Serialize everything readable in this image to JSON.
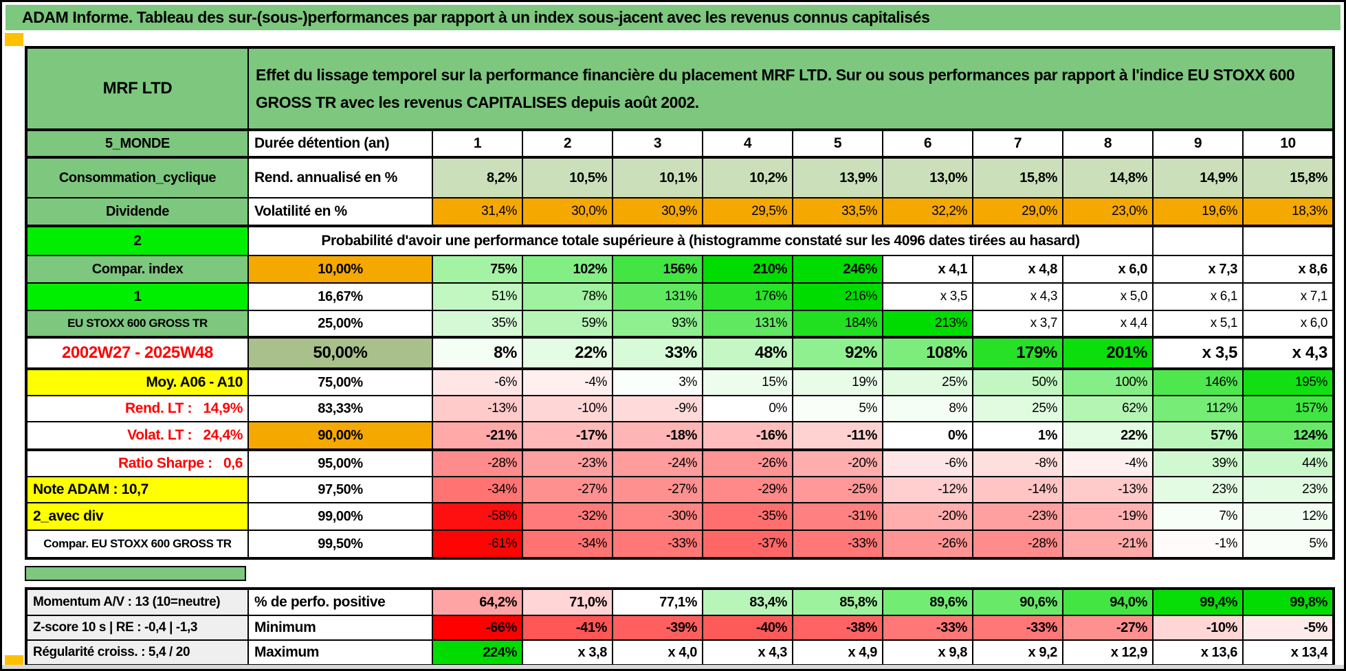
{
  "page": {
    "title": "ADAM Informe. Tableau des sur-(sous-)performances par rapport à un index sous-jacent avec les revenus connus capitalisés"
  },
  "header": {
    "name": "MRF LTD",
    "description": "Effet du lissage temporel sur la performance financière du placement MRF LTD. Sur ou sous performances par rapport à l'indice EU STOXX 600 GROSS TR avec les revenus CAPITALISES depuis août 2002."
  },
  "colors": {
    "band_green": "#7DC77E",
    "bright_green": "#00EF00",
    "orange": "#F5A800",
    "yellow": "#FFFF00",
    "sage": "#A9C08C",
    "rend_row_bg": "#CBE0BA",
    "info_gray": "#EFEFEF",
    "red_text": "#FF0000",
    "scale_green_max": "#00DC00",
    "scale_red_max": "#FF0000",
    "marker_orange": "#FFC000"
  },
  "left_labels": [
    {
      "text": "5_MONDE",
      "bg": "band",
      "fg": "#000000",
      "align": "center",
      "size": 20
    },
    {
      "text": "Consommation_cyclique",
      "bg": "band",
      "fg": "#000000",
      "align": "center",
      "size": 20
    },
    {
      "text": "Dividende",
      "bg": "band",
      "fg": "#000000",
      "align": "center",
      "size": 20
    },
    {
      "text": "2",
      "bg": "bright",
      "fg": "#000000",
      "align": "center",
      "size": 21,
      "marker": true
    },
    {
      "text": "Compar. index",
      "bg": "band",
      "fg": "#000000",
      "align": "center",
      "size": 20
    },
    {
      "text": "1",
      "bg": "bright",
      "fg": "#000000",
      "align": "center",
      "size": 21,
      "marker": true
    },
    {
      "text": "EU STOXX 600 GROSS TR",
      "bg": "band",
      "fg": "#000000",
      "align": "center",
      "size": 17
    },
    {
      "text": "2002W27 - 2025W48",
      "bg": "white",
      "fg": "#FF0000",
      "align": "center",
      "size": 24
    },
    {
      "text": "Moy. A06 - A10",
      "bg": "yellow",
      "fg": "#000000",
      "align": "right",
      "size": 21
    },
    {
      "text": "Rend. LT :   14,9%",
      "bg": "white",
      "fg": "#FF0000",
      "align": "right",
      "size": 21
    },
    {
      "text": "Volat. LT :   24,4%",
      "bg": "white",
      "fg": "#FF0000",
      "align": "right",
      "size": 21
    },
    {
      "text": "Ratio Sharpe :   0,6",
      "bg": "white",
      "fg": "#FF0000",
      "align": "right",
      "size": 21
    },
    {
      "text": "Note ADAM : 10,7",
      "bg": "yellow",
      "fg": "#000000",
      "align": "left",
      "size": 21
    },
    {
      "text": "2_avec div",
      "bg": "yellow",
      "fg": "#000000",
      "align": "left",
      "size": 21
    },
    {
      "text": "Compar. EU STOXX 600 GROSS TR",
      "bg": "white",
      "fg": "#000000",
      "align": "center",
      "size": 17
    }
  ],
  "grid": {
    "duration": {
      "label": "Durée détention (an)",
      "values": [
        "1",
        "2",
        "3",
        "4",
        "5",
        "6",
        "7",
        "8",
        "9",
        "10"
      ]
    },
    "rend": {
      "label": "Rend. annualisé en %",
      "values": [
        "8,2%",
        "10,5%",
        "10,1%",
        "10,2%",
        "13,9%",
        "13,0%",
        "15,8%",
        "14,8%",
        "14,9%",
        "15,8%"
      ]
    },
    "vol": {
      "label": "Volatilité en %",
      "values": [
        "31,4%",
        "30,0%",
        "30,9%",
        "29,5%",
        "33,5%",
        "32,2%",
        "29,0%",
        "23,0%",
        "19,6%",
        "18,3%"
      ]
    },
    "prob_title": "Probabilité d'avoir une performance totale supérieure à (histogramme constaté sur les 4096 dates tirées au hasard)",
    "prob_rows": [
      {
        "label": "10,00%",
        "label_bg": "orange",
        "cells": [
          "75%",
          "102%",
          "156%",
          "210%",
          "246%",
          "x 4,1",
          "x 4,8",
          "x 6,0",
          "x 7,3",
          "x 8,6"
        ]
      },
      {
        "label": "16,67%",
        "label_bg": "white",
        "cells": [
          "51%",
          "78%",
          "131%",
          "176%",
          "216%",
          "x 3,5",
          "x 4,3",
          "x 5,0",
          "x 6,1",
          "x 7,1"
        ]
      },
      {
        "label": "25,00%",
        "label_bg": "white",
        "cells": [
          "35%",
          "59%",
          "93%",
          "131%",
          "184%",
          "213%",
          "x 3,7",
          "x 4,4",
          "x 5,1",
          "x 6,0"
        ]
      },
      {
        "label": "50,00%",
        "label_bg": "sage",
        "cells": [
          "8%",
          "22%",
          "33%",
          "48%",
          "92%",
          "108%",
          "179%",
          "201%",
          "x 3,5",
          "x 4,3"
        ]
      },
      {
        "label": "75,00%",
        "label_bg": "white",
        "cells": [
          "-6%",
          "-4%",
          "3%",
          "15%",
          "19%",
          "25%",
          "50%",
          "100%",
          "146%",
          "195%"
        ]
      },
      {
        "label": "83,33%",
        "label_bg": "white",
        "cells": [
          "-13%",
          "-10%",
          "-9%",
          "0%",
          "5%",
          "8%",
          "25%",
          "62%",
          "112%",
          "157%"
        ]
      },
      {
        "label": "90,00%",
        "label_bg": "orange",
        "cells": [
          "-21%",
          "-17%",
          "-18%",
          "-16%",
          "-11%",
          "0%",
          "1%",
          "22%",
          "57%",
          "124%"
        ]
      },
      {
        "label": "95,00%",
        "label_bg": "white",
        "cells": [
          "-28%",
          "-23%",
          "-24%",
          "-26%",
          "-20%",
          "-6%",
          "-8%",
          "-4%",
          "39%",
          "44%"
        ]
      },
      {
        "label": "97,50%",
        "label_bg": "white",
        "cells": [
          "-34%",
          "-27%",
          "-27%",
          "-29%",
          "-25%",
          "-12%",
          "-14%",
          "-13%",
          "23%",
          "23%"
        ]
      },
      {
        "label": "99,00%",
        "label_bg": "white",
        "cells": [
          "-58%",
          "-32%",
          "-30%",
          "-35%",
          "-31%",
          "-20%",
          "-23%",
          "-19%",
          "7%",
          "12%"
        ]
      },
      {
        "label": "99,50%",
        "label_bg": "white",
        "cells": [
          "-61%",
          "-34%",
          "-33%",
          "-37%",
          "-33%",
          "-26%",
          "-28%",
          "-21%",
          "-1%",
          "5%"
        ]
      }
    ],
    "bottom_rows": [
      {
        "info": "Momentum A/V : 13 (10=neutre)",
        "label": "% de perfo. positive",
        "scale": "perf",
        "values": [
          "64,2%",
          "71,0%",
          "77,1%",
          "83,4%",
          "85,8%",
          "89,6%",
          "90,6%",
          "94,0%",
          "99,4%",
          "99,8%"
        ]
      },
      {
        "info": "Z-score 10 s | RE : -0,4 | -1,3",
        "label": "Minimum",
        "scale": "std",
        "values": [
          "-66%",
          "-41%",
          "-39%",
          "-40%",
          "-38%",
          "-33%",
          "-33%",
          "-27%",
          "-10%",
          "-5%"
        ]
      },
      {
        "info": "Régularité croiss. : 5,4 / 20",
        "label": "Maximum",
        "scale": "std",
        "values": [
          "224%",
          "x 3,8",
          "x 4,0",
          "x 4,3",
          "x 4,9",
          "x 9,8",
          "x 9,2",
          "x 12,9",
          "x 13,6",
          "x 13,4"
        ]
      }
    ]
  }
}
